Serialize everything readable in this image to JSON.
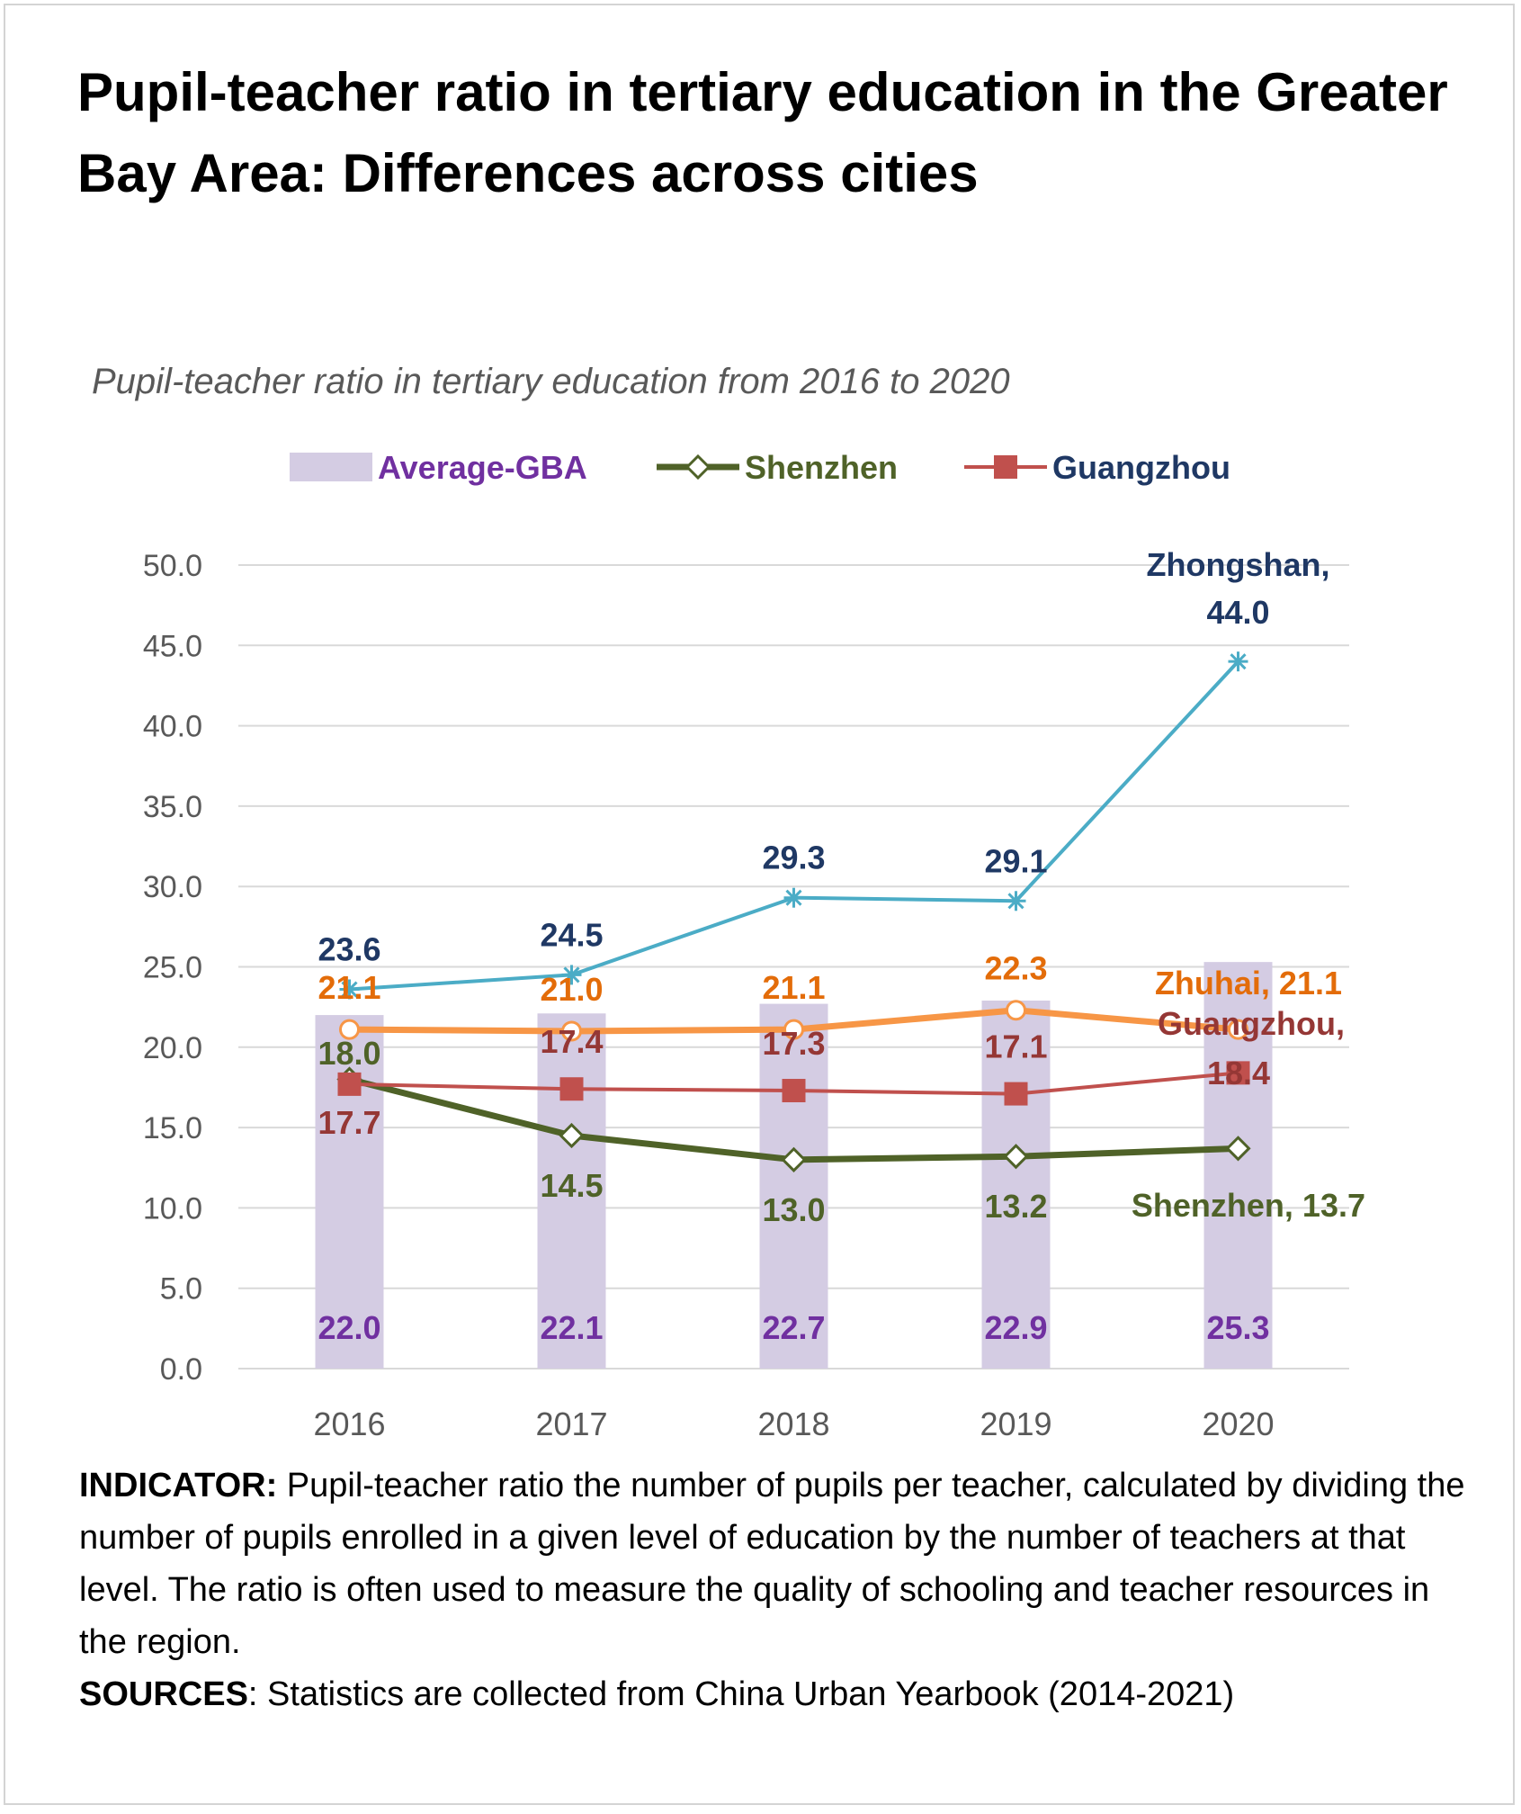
{
  "title": "Pupil-teacher ratio in tertiary education in the Greater Bay Area: Differences across cities",
  "notes": {
    "indicator_label": "INDICATOR:",
    "indicator_text": " Pupil-teacher ratio the number of pupils per teacher, calculated by dividing the number of pupils enrolled in a given level of education by the number of teachers at that level. The ratio is often used to measure the quality of schooling and teacher resources in the region.",
    "sources_label": "SOURCES",
    "sources_text": ":  Statistics are collected from China Urban Yearbook (2014-2021)"
  },
  "chart_data": {
    "type": "bar",
    "title": "Pupil-teacher ratio in tertiary education from 2016 to 2020",
    "categories": [
      "2016",
      "2017",
      "2018",
      "2019",
      "2020"
    ],
    "ylim": [
      0,
      50
    ],
    "yticks": [
      "0.0",
      "5.0",
      "10.0",
      "15.0",
      "20.0",
      "25.0",
      "30.0",
      "35.0",
      "40.0",
      "45.0",
      "50.0"
    ],
    "grid": true,
    "legend_position": "top",
    "series": [
      {
        "name": "Average-GBA",
        "kind": "bar",
        "color": "#d4cce3",
        "label_color": "#7030a0",
        "values": [
          22.0,
          22.1,
          22.7,
          22.9,
          25.3
        ],
        "labels": [
          "22.0",
          "22.1",
          "22.7",
          "22.9",
          "25.3"
        ],
        "in_legend": true
      },
      {
        "name": "Shenzhen",
        "kind": "line",
        "marker": "diamond-open",
        "color": "#4f6228",
        "label_color": "#4f6228",
        "values": [
          18.0,
          14.5,
          13.0,
          13.2,
          13.7
        ],
        "labels": [
          "18.0",
          "14.5",
          "13.0",
          "13.2",
          "Shenzhen, 13.7"
        ],
        "in_legend": true
      },
      {
        "name": "Guangzhou",
        "kind": "line",
        "marker": "square",
        "color": "#c0504d",
        "label_color": "#953735",
        "values": [
          17.7,
          17.4,
          17.3,
          17.1,
          18.4
        ],
        "labels": [
          "17.7",
          "17.4",
          "17.3",
          "17.1",
          "18.4"
        ],
        "end_label": "Guangzhou,",
        "in_legend": true
      },
      {
        "name": "Zhuhai",
        "kind": "line",
        "marker": "circle-open",
        "color": "#f79646",
        "label_color": "#e36c09",
        "values": [
          21.1,
          21.0,
          21.1,
          22.3,
          21.1
        ],
        "labels": [
          "21.1",
          "21.0",
          "21.1",
          "22.3",
          "Zhuhai, 21.1"
        ],
        "in_legend": false
      },
      {
        "name": "Zhongshan",
        "kind": "line",
        "marker": "asterisk",
        "color": "#4bacc6",
        "label_color": "#1f3864",
        "values": [
          23.6,
          24.5,
          29.3,
          29.1,
          44.0
        ],
        "labels": [
          "23.6",
          "24.5",
          "29.3",
          "29.1",
          "44.0"
        ],
        "end_label": "Zhongshan,",
        "in_legend": false
      }
    ]
  }
}
